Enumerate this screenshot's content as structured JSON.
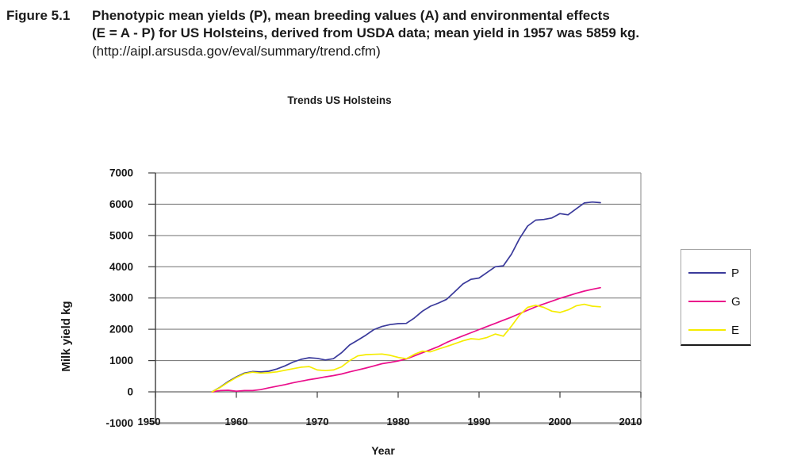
{
  "figure_caption": {
    "label": "Figure 5.1",
    "line1": "Phenotypic mean yields (P), mean breeding values (A) and environmental effects",
    "line2": "(E = A - P) for US Holsteins, derived from USDA data; mean yield in 1957 was 5859 kg.",
    "line3": "(http://aipl.arsusda.gov/eval/summary/trend.cfm)"
  },
  "chart_data": {
    "type": "line",
    "title": "Trends US Holsteins",
    "xlabel": "Year",
    "ylabel": "Milk yield kg",
    "xlim": [
      1950,
      2010
    ],
    "ylim": [
      -1000,
      7000
    ],
    "xticks": [
      1950,
      1960,
      1970,
      1980,
      1990,
      2000,
      2010
    ],
    "yticks": [
      -1000,
      0,
      1000,
      2000,
      3000,
      4000,
      5000,
      6000,
      7000
    ],
    "grid": "horizontal",
    "legend_position": "right",
    "x": [
      1957,
      1958,
      1959,
      1960,
      1961,
      1962,
      1963,
      1964,
      1965,
      1966,
      1967,
      1968,
      1969,
      1970,
      1971,
      1972,
      1973,
      1974,
      1975,
      1976,
      1977,
      1978,
      1979,
      1980,
      1981,
      1982,
      1983,
      1984,
      1985,
      1986,
      1987,
      1988,
      1989,
      1990,
      1991,
      1992,
      1993,
      1994,
      1995,
      1996,
      1997,
      1998,
      1999,
      2000,
      2001,
      2002,
      2003,
      2004,
      2005
    ],
    "series": [
      {
        "name": "P",
        "color": "#3a3a9b",
        "values": [
          0,
          150,
          330,
          480,
          600,
          650,
          640,
          660,
          730,
          830,
          950,
          1040,
          1090,
          1070,
          1020,
          1060,
          1250,
          1500,
          1650,
          1810,
          1990,
          2090,
          2150,
          2180,
          2190,
          2360,
          2580,
          2740,
          2840,
          2960,
          3200,
          3450,
          3600,
          3640,
          3820,
          4000,
          4030,
          4400,
          4900,
          5300,
          5490,
          5510,
          5560,
          5700,
          5660,
          5850,
          6040,
          6070,
          6050
        ]
      },
      {
        "name": "G",
        "color": "#ea0e8b",
        "values": [
          0,
          40,
          50,
          20,
          40,
          40,
          70,
          130,
          180,
          230,
          290,
          340,
          390,
          430,
          480,
          520,
          570,
          640,
          700,
          760,
          830,
          900,
          940,
          990,
          1050,
          1150,
          1250,
          1350,
          1450,
          1580,
          1690,
          1790,
          1890,
          1990,
          2090,
          2190,
          2290,
          2390,
          2500,
          2610,
          2720,
          2810,
          2900,
          2990,
          3070,
          3150,
          3220,
          3280,
          3330
        ]
      },
      {
        "name": "E",
        "color": "#f5ec00",
        "values": [
          0,
          140,
          310,
          460,
          580,
          630,
          600,
          610,
          640,
          690,
          740,
          790,
          810,
          700,
          680,
          700,
          800,
          1000,
          1150,
          1190,
          1200,
          1210,
          1170,
          1100,
          1060,
          1200,
          1300,
          1280,
          1370,
          1450,
          1540,
          1630,
          1700,
          1680,
          1740,
          1850,
          1780,
          2100,
          2450,
          2700,
          2770,
          2700,
          2580,
          2540,
          2620,
          2750,
          2800,
          2740,
          2720
        ]
      }
    ],
    "colors": {
      "gridline": "#808080",
      "axis": "#3d3d3d",
      "plot_bottom_border": "#9a9a9a"
    }
  }
}
